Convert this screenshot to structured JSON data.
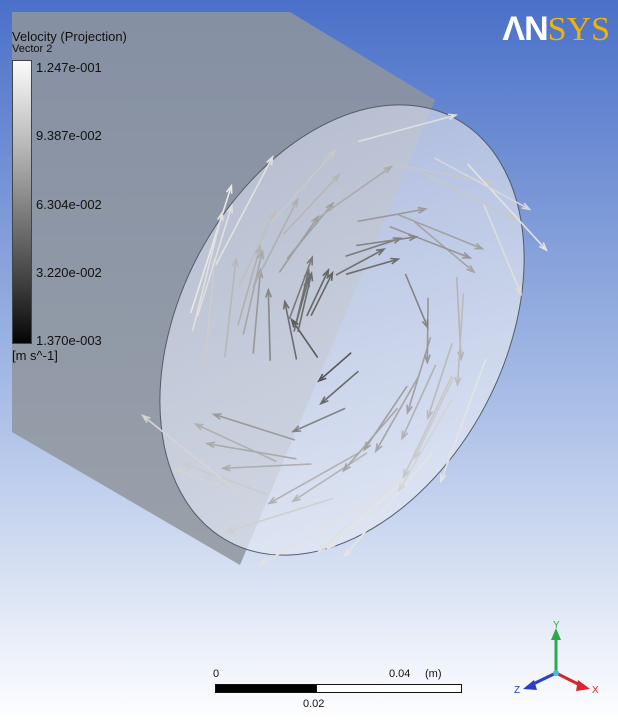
{
  "legend": {
    "title": "Velocity (Projection)",
    "subtitle": "Vector 2",
    "ticks": [
      "1.247e-001",
      "9.387e-002",
      "6.304e-002",
      "3.220e-002",
      "1.370e-003"
    ],
    "unit": "[m s^-1]"
  },
  "logo": {
    "part1": "ΛN",
    "part2": "SYS"
  },
  "scale": {
    "start": "0",
    "end": "0.04",
    "unit": "(m)",
    "mid": "0.02"
  },
  "axes": {
    "x": "X",
    "y": "Y",
    "z": "Z"
  },
  "colors": {
    "background_top": "#4a70c8",
    "background_bottom": "#ffffff",
    "pipe": "#8f959c",
    "logo_accent": "#f2b400",
    "axis_x": "#d8262e",
    "axis_y": "#2ea84a",
    "axis_z": "#2a3fc6"
  }
}
